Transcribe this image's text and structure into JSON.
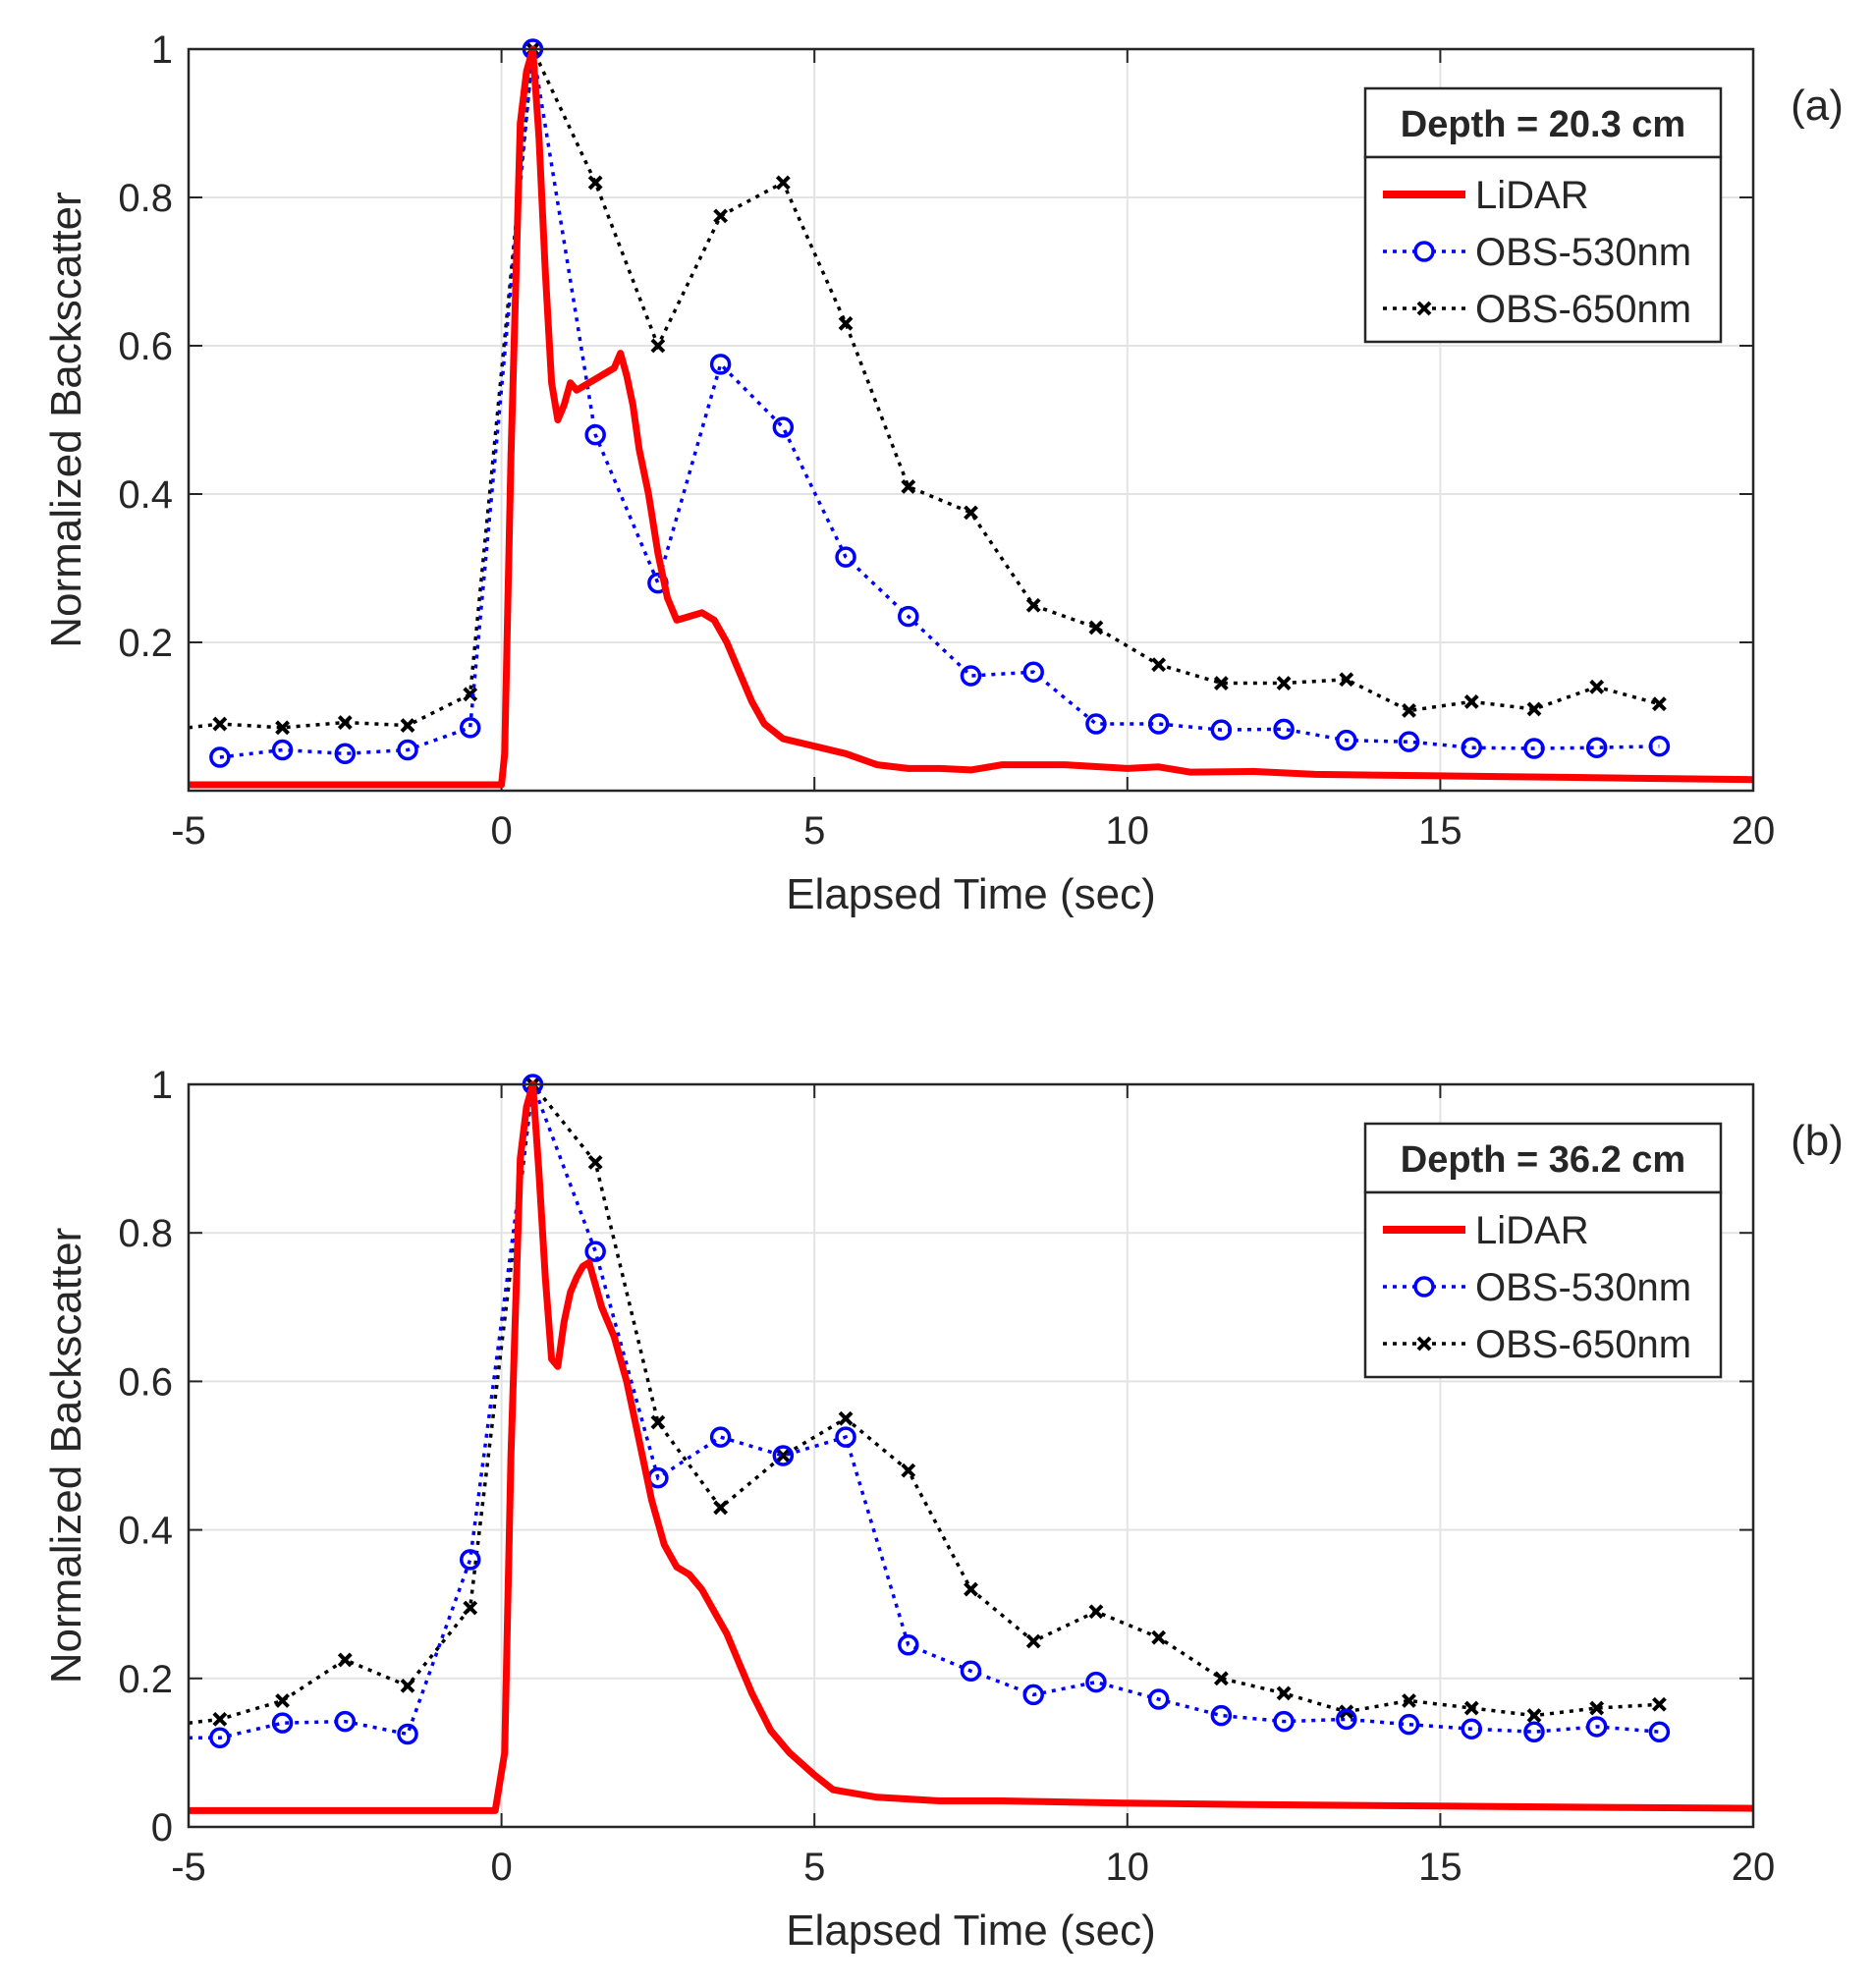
{
  "chart_data": [
    {
      "type": "line",
      "panel_label": "(a)",
      "xlabel": "Elapsed Time (sec)",
      "ylabel": "Normalized Backscatter",
      "xlim": [
        -5,
        20
      ],
      "ylim": [
        0,
        1
      ],
      "xticks": [
        -5,
        0,
        5,
        10,
        15,
        20
      ],
      "xtick_labels": [
        "-5",
        "0",
        "5",
        "10",
        "15",
        "20"
      ],
      "yticks": [
        0.2,
        0.4,
        0.6,
        0.8,
        1
      ],
      "ytick_labels": [
        "0.2",
        "0.4",
        "0.6",
        "0.8",
        "1"
      ],
      "grid": true,
      "legend_title": "Depth = 20.3 cm",
      "legend_position": "top-right",
      "colors": {
        "lidar": "#ff0000",
        "obs530": "#0000ff",
        "obs650": "#000000"
      },
      "series": [
        {
          "name": "LiDAR",
          "style": "solid",
          "x": [
            -5,
            -1,
            0,
            0.05,
            0.15,
            0.3,
            0.4,
            0.5,
            0.6,
            0.7,
            0.8,
            0.9,
            1.0,
            1.1,
            1.2,
            1.4,
            1.6,
            1.8,
            1.9,
            2.0,
            2.1,
            2.2,
            2.35,
            2.5,
            2.65,
            2.8,
            3.0,
            3.2,
            3.4,
            3.6,
            3.8,
            4.0,
            4.2,
            4.5,
            5.0,
            5.5,
            6.0,
            6.5,
            7.0,
            7.5,
            8.0,
            9.0,
            10.0,
            10.5,
            11.0,
            12.0,
            13.0,
            15.0,
            17.0,
            18.0,
            20.0
          ],
          "y": [
            0.008,
            0.008,
            0.008,
            0.05,
            0.45,
            0.9,
            0.97,
            1.0,
            0.88,
            0.7,
            0.55,
            0.5,
            0.52,
            0.55,
            0.54,
            0.55,
            0.56,
            0.57,
            0.59,
            0.56,
            0.52,
            0.46,
            0.4,
            0.32,
            0.26,
            0.23,
            0.235,
            0.24,
            0.23,
            0.2,
            0.16,
            0.12,
            0.09,
            0.07,
            0.06,
            0.05,
            0.035,
            0.03,
            0.03,
            0.028,
            0.035,
            0.035,
            0.03,
            0.032,
            0.025,
            0.026,
            0.022,
            0.02,
            0.018,
            0.017,
            0.015
          ]
        },
        {
          "name": "OBS-530nm",
          "style": "dotted-circle",
          "x": [
            -4.5,
            -3.5,
            -2.5,
            -1.5,
            -0.5,
            0.5,
            1.5,
            2.5,
            3.5,
            4.5,
            5.5,
            6.5,
            7.5,
            8.5,
            9.5,
            10.5,
            11.5,
            12.5,
            13.5,
            14.5,
            15.5,
            16.5,
            17.5,
            18.5
          ],
          "y": [
            0.045,
            0.055,
            0.05,
            0.055,
            0.085,
            1.0,
            0.48,
            0.28,
            0.575,
            0.49,
            0.315,
            0.235,
            0.155,
            0.16,
            0.09,
            0.09,
            0.082,
            0.083,
            0.068,
            0.066,
            0.058,
            0.057,
            0.058,
            0.06
          ]
        },
        {
          "name": "OBS-650nm",
          "style": "dotted-x",
          "x": [
            -5,
            -4.5,
            -3.5,
            -2.5,
            -1.5,
            -0.5,
            0.5,
            1.5,
            2.5,
            3.5,
            4.5,
            5.5,
            6.5,
            7.5,
            8.5,
            9.5,
            10.5,
            11.5,
            12.5,
            13.5,
            14.5,
            15.5,
            16.5,
            17.5,
            18.5
          ],
          "y": [
            0.085,
            0.09,
            0.085,
            0.092,
            0.088,
            0.13,
            1.0,
            0.82,
            0.6,
            0.775,
            0.82,
            0.63,
            0.41,
            0.375,
            0.25,
            0.22,
            0.17,
            0.145,
            0.145,
            0.15,
            0.108,
            0.12,
            0.11,
            0.14,
            0.117
          ]
        }
      ]
    },
    {
      "type": "line",
      "panel_label": "(b)",
      "xlabel": "Elapsed Time (sec)",
      "ylabel": "Normalized Backscatter",
      "xlim": [
        -5,
        20
      ],
      "ylim": [
        0,
        1
      ],
      "xticks": [
        -5,
        0,
        5,
        10,
        15,
        20
      ],
      "xtick_labels": [
        "-5",
        "0",
        "5",
        "10",
        "15",
        "20"
      ],
      "yticks": [
        0,
        0.2,
        0.4,
        0.6,
        0.8,
        1
      ],
      "ytick_labels": [
        "0",
        "0.2",
        "0.4",
        "0.6",
        "0.8",
        "1"
      ],
      "grid": true,
      "legend_title": "Depth = 36.2 cm",
      "legend_position": "top-right",
      "colors": {
        "lidar": "#ff0000",
        "obs530": "#0000ff",
        "obs650": "#000000"
      },
      "series": [
        {
          "name": "LiDAR",
          "style": "solid",
          "x": [
            -5,
            -1,
            -0.1,
            0.05,
            0.15,
            0.3,
            0.4,
            0.5,
            0.6,
            0.7,
            0.8,
            0.9,
            1.0,
            1.1,
            1.2,
            1.3,
            1.4,
            1.5,
            1.6,
            1.8,
            2.0,
            2.2,
            2.4,
            2.6,
            2.8,
            3.0,
            3.2,
            3.4,
            3.6,
            3.8,
            4.0,
            4.3,
            4.6,
            5.0,
            5.3,
            6.0,
            7.0,
            8.0,
            10.0,
            12.0,
            15.0,
            18.0,
            20.0
          ],
          "y": [
            0.022,
            0.022,
            0.022,
            0.1,
            0.5,
            0.9,
            0.97,
            1.0,
            0.88,
            0.74,
            0.63,
            0.62,
            0.68,
            0.72,
            0.74,
            0.755,
            0.76,
            0.73,
            0.7,
            0.66,
            0.6,
            0.52,
            0.44,
            0.38,
            0.35,
            0.34,
            0.32,
            0.29,
            0.26,
            0.22,
            0.18,
            0.13,
            0.1,
            0.07,
            0.05,
            0.04,
            0.035,
            0.035,
            0.032,
            0.03,
            0.028,
            0.026,
            0.025
          ]
        },
        {
          "name": "OBS-530nm",
          "style": "dotted-circle",
          "x": [
            -5,
            -4.5,
            -3.5,
            -2.5,
            -1.5,
            -0.5,
            0.5,
            1.5,
            2.5,
            3.5,
            4.5,
            5.5,
            6.5,
            7.5,
            8.5,
            9.5,
            10.5,
            11.5,
            12.5,
            13.5,
            14.5,
            15.5,
            16.5,
            17.5,
            18.5
          ],
          "y": [
            0.12,
            0.12,
            0.14,
            0.142,
            0.125,
            0.36,
            1.0,
            0.775,
            0.47,
            0.525,
            0.5,
            0.525,
            0.245,
            0.21,
            0.178,
            0.195,
            0.172,
            0.15,
            0.142,
            0.145,
            0.138,
            0.132,
            0.128,
            0.135,
            0.128
          ]
        },
        {
          "name": "OBS-650nm",
          "style": "dotted-x",
          "x": [
            -5,
            -4.5,
            -3.5,
            -2.5,
            -1.5,
            -0.5,
            0.5,
            1.5,
            2.5,
            3.5,
            4.5,
            5.5,
            6.5,
            7.5,
            8.5,
            9.5,
            10.5,
            11.5,
            12.5,
            13.5,
            14.5,
            15.5,
            16.5,
            17.5,
            18.5
          ],
          "y": [
            0.14,
            0.145,
            0.17,
            0.225,
            0.19,
            0.295,
            1.0,
            0.895,
            0.545,
            0.43,
            0.5,
            0.55,
            0.48,
            0.32,
            0.25,
            0.29,
            0.255,
            0.2,
            0.18,
            0.155,
            0.17,
            0.16,
            0.15,
            0.16,
            0.165
          ]
        }
      ]
    }
  ]
}
